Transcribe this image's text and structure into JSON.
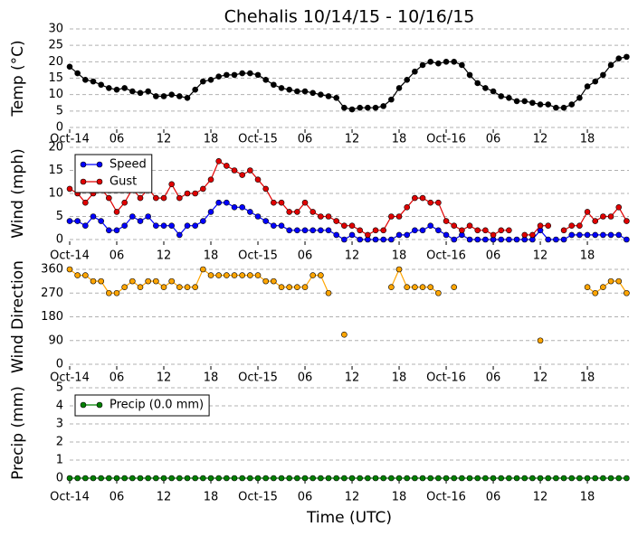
{
  "chart_data": [
    {
      "type": "line",
      "title": "Chehalis 10/14/15 - 10/16/15",
      "y_label": "Temp (°C)",
      "x": [
        0,
        1,
        2,
        3,
        4,
        5,
        6,
        7,
        8,
        9,
        10,
        11,
        12,
        13,
        14,
        15,
        16,
        17,
        18,
        19,
        20,
        21,
        22,
        23,
        24,
        25,
        26,
        27,
        28,
        29,
        30,
        31,
        32,
        33,
        34,
        35,
        36,
        37,
        38,
        39,
        40,
        41,
        42,
        43,
        44,
        45,
        46,
        47,
        48,
        49,
        50,
        51,
        52,
        53,
        54,
        55,
        56,
        57,
        58,
        59,
        60,
        61,
        62,
        63,
        64,
        65,
        66,
        67,
        68,
        69,
        70,
        71
      ],
      "xlim": [
        0,
        71.3
      ],
      "xticks": [
        {
          "value": 0,
          "label": "Oct-14"
        },
        {
          "value": 6,
          "label": "06"
        },
        {
          "value": 12,
          "label": "12"
        },
        {
          "value": 18,
          "label": "18"
        },
        {
          "value": 24,
          "label": "Oct-15"
        },
        {
          "value": 30,
          "label": "06"
        },
        {
          "value": 36,
          "label": "12"
        },
        {
          "value": 42,
          "label": "18"
        },
        {
          "value": 48,
          "label": "Oct-16"
        },
        {
          "value": 54,
          "label": "06"
        },
        {
          "value": 60,
          "label": "12"
        },
        {
          "value": 66,
          "label": "18"
        }
      ],
      "ylim": [
        0,
        30
      ],
      "yticks": [
        0,
        5,
        10,
        15,
        20,
        25,
        30
      ],
      "grid": true,
      "series": [
        {
          "color": "#000000",
          "values": [
            18.5,
            16.5,
            14.5,
            14,
            13,
            12,
            11.5,
            12,
            11,
            10.5,
            11,
            9.5,
            9.5,
            10,
            9.5,
            9,
            11.5,
            14,
            14.5,
            15.5,
            16,
            16,
            16.5,
            16.5,
            16,
            14.5,
            13,
            12,
            11.5,
            11,
            11,
            10.5,
            10,
            9.5,
            9,
            6,
            5.5,
            6,
            6,
            6,
            6.5,
            8.5,
            12,
            14.5,
            17,
            19,
            20,
            19.5,
            20,
            20,
            19,
            16,
            13.5,
            12,
            11,
            9.5,
            9,
            8,
            8,
            7.5,
            7,
            7,
            6,
            6,
            7,
            9,
            12.5,
            14,
            16,
            19,
            21,
            21.5
          ]
        }
      ]
    },
    {
      "type": "line",
      "y_label": "Wind (mph)",
      "x": [
        0,
        1,
        2,
        3,
        4,
        5,
        6,
        7,
        8,
        9,
        10,
        11,
        12,
        13,
        14,
        15,
        16,
        17,
        18,
        19,
        20,
        21,
        22,
        23,
        24,
        25,
        26,
        27,
        28,
        29,
        30,
        31,
        32,
        33,
        34,
        35,
        36,
        37,
        38,
        39,
        40,
        41,
        42,
        43,
        44,
        45,
        46,
        47,
        48,
        49,
        50,
        51,
        52,
        53,
        54,
        55,
        56,
        57,
        58,
        59,
        60,
        61,
        62,
        63,
        64,
        65,
        66,
        67,
        68,
        69,
        70,
        71
      ],
      "xlim": [
        0,
        71.3
      ],
      "xticks": [
        {
          "value": 0,
          "label": "Oct-14"
        },
        {
          "value": 6,
          "label": "06"
        },
        {
          "value": 12,
          "label": "12"
        },
        {
          "value": 18,
          "label": "18"
        },
        {
          "value": 24,
          "label": "Oct-15"
        },
        {
          "value": 30,
          "label": "06"
        },
        {
          "value": 36,
          "label": "12"
        },
        {
          "value": 42,
          "label": "18"
        },
        {
          "value": 48,
          "label": "Oct-16"
        },
        {
          "value": 54,
          "label": "06"
        },
        {
          "value": 60,
          "label": "12"
        },
        {
          "value": 66,
          "label": "18"
        }
      ],
      "ylim": [
        0,
        20
      ],
      "yticks": [
        0,
        5,
        10,
        15,
        20
      ],
      "grid": true,
      "legend": "upper left",
      "series": [
        {
          "name": "Speed",
          "color": "#0000ff",
          "values": [
            4,
            4,
            3,
            5,
            4,
            2,
            2,
            3,
            5,
            4,
            5,
            3,
            3,
            3,
            1,
            3,
            3,
            4,
            6,
            8,
            8,
            7,
            7,
            6,
            5,
            4,
            3,
            3,
            2,
            2,
            2,
            2,
            2,
            2,
            1,
            0,
            1,
            0,
            0,
            0,
            0,
            0,
            1,
            1,
            2,
            2,
            3,
            2,
            1,
            0,
            1,
            0,
            0,
            0,
            0,
            0,
            0,
            0,
            0,
            0,
            2,
            0,
            0,
            0,
            1,
            1,
            1,
            1,
            1,
            1,
            1,
            0
          ]
        },
        {
          "name": "Gust",
          "color": "#e00000",
          "values": [
            11,
            10,
            8,
            10,
            11,
            9,
            6,
            8,
            11,
            9,
            11,
            9,
            9,
            12,
            9,
            10,
            10,
            11,
            13,
            17,
            16,
            15,
            14,
            15,
            13,
            11,
            8,
            8,
            6,
            6,
            8,
            6,
            5,
            5,
            4,
            3,
            3,
            2,
            1,
            2,
            2,
            5,
            5,
            7,
            9,
            9,
            8,
            8,
            4,
            3,
            2,
            3,
            2,
            2,
            1,
            2,
            2,
            null,
            1,
            1,
            3,
            3,
            null,
            2,
            3,
            3,
            6,
            4,
            5,
            5,
            7,
            4
          ]
        }
      ]
    },
    {
      "type": "line",
      "y_label": "Wind Direction",
      "x": [
        0,
        1,
        2,
        3,
        4,
        5,
        6,
        7,
        8,
        9,
        10,
        11,
        12,
        13,
        14,
        15,
        16,
        17,
        18,
        19,
        20,
        21,
        22,
        23,
        24,
        25,
        26,
        27,
        28,
        29,
        30,
        31,
        32,
        33,
        34,
        35,
        36,
        37,
        38,
        39,
        40,
        41,
        42,
        43,
        44,
        45,
        46,
        47,
        48,
        49,
        50,
        51,
        52,
        53,
        54,
        55,
        56,
        57,
        58,
        59,
        60,
        61,
        62,
        63,
        64,
        65,
        66,
        67,
        68,
        69,
        70,
        71
      ],
      "xlim": [
        0,
        71.3
      ],
      "xticks": [
        {
          "value": 0,
          "label": "Oct-14"
        },
        {
          "value": 6,
          "label": "06"
        },
        {
          "value": 12,
          "label": "12"
        },
        {
          "value": 18,
          "label": "18"
        },
        {
          "value": 24,
          "label": "Oct-15"
        },
        {
          "value": 30,
          "label": "06"
        },
        {
          "value": 36,
          "label": "12"
        },
        {
          "value": 42,
          "label": "18"
        },
        {
          "value": 48,
          "label": "Oct-16"
        },
        {
          "value": 54,
          "label": "06"
        },
        {
          "value": 60,
          "label": "12"
        },
        {
          "value": 66,
          "label": "18"
        }
      ],
      "ylim": [
        0,
        360
      ],
      "yticks": [
        0,
        90,
        180,
        270,
        360
      ],
      "grid": true,
      "series": [
        {
          "color": "#ffa500",
          "values": [
            360,
            337.5,
            337.5,
            315,
            315,
            270,
            270,
            292.5,
            315,
            292.5,
            315,
            315,
            292.5,
            315,
            292.5,
            292.5,
            292.5,
            360,
            337.5,
            337.5,
            337.5,
            337.5,
            337.5,
            337.5,
            337.5,
            315,
            315,
            292.5,
            292.5,
            292.5,
            292.5,
            337.5,
            337.5,
            270,
            null,
            112.5,
            null,
            null,
            null,
            null,
            null,
            292.5,
            360,
            292.5,
            292.5,
            292.5,
            292.5,
            270,
            null,
            292.5,
            null,
            null,
            null,
            null,
            null,
            null,
            null,
            null,
            null,
            null,
            90,
            null,
            null,
            null,
            null,
            null,
            292.5,
            270,
            292.5,
            315,
            315,
            270
          ]
        }
      ]
    },
    {
      "type": "line",
      "y_label": "Precip (mm)",
      "x_label": "Time (UTC)",
      "x": [
        0,
        1,
        2,
        3,
        4,
        5,
        6,
        7,
        8,
        9,
        10,
        11,
        12,
        13,
        14,
        15,
        16,
        17,
        18,
        19,
        20,
        21,
        22,
        23,
        24,
        25,
        26,
        27,
        28,
        29,
        30,
        31,
        32,
        33,
        34,
        35,
        36,
        37,
        38,
        39,
        40,
        41,
        42,
        43,
        44,
        45,
        46,
        47,
        48,
        49,
        50,
        51,
        52,
        53,
        54,
        55,
        56,
        57,
        58,
        59,
        60,
        61,
        62,
        63,
        64,
        65,
        66,
        67,
        68,
        69,
        70,
        71
      ],
      "xlim": [
        0,
        71.3
      ],
      "xticks": [
        {
          "value": 0,
          "label": "Oct-14"
        },
        {
          "value": 6,
          "label": "06"
        },
        {
          "value": 12,
          "label": "12"
        },
        {
          "value": 18,
          "label": "18"
        },
        {
          "value": 24,
          "label": "Oct-15"
        },
        {
          "value": 30,
          "label": "06"
        },
        {
          "value": 36,
          "label": "12"
        },
        {
          "value": 42,
          "label": "18"
        },
        {
          "value": 48,
          "label": "Oct-16"
        },
        {
          "value": 54,
          "label": "06"
        },
        {
          "value": 60,
          "label": "12"
        },
        {
          "value": 66,
          "label": "18"
        }
      ],
      "ylim": [
        0,
        5
      ],
      "yticks": [
        0,
        1,
        2,
        3,
        4,
        5
      ],
      "grid": true,
      "legend": "upper left",
      "series": [
        {
          "name": "Precip (0.0 mm)",
          "color": "#008000",
          "values": [
            0,
            0,
            0,
            0,
            0,
            0,
            0,
            0,
            0,
            0,
            0,
            0,
            0,
            0,
            0,
            0,
            0,
            0,
            0,
            0,
            0,
            0,
            0,
            0,
            0,
            0,
            0,
            0,
            0,
            0,
            0,
            0,
            0,
            0,
            0,
            0,
            0,
            0,
            0,
            0,
            0,
            0,
            0,
            0,
            0,
            0,
            0,
            0,
            0,
            0,
            0,
            0,
            0,
            0,
            0,
            0,
            0,
            0,
            0,
            0,
            0,
            0,
            0,
            0,
            0,
            0,
            0,
            0,
            0,
            0,
            0,
            0
          ]
        }
      ]
    }
  ]
}
